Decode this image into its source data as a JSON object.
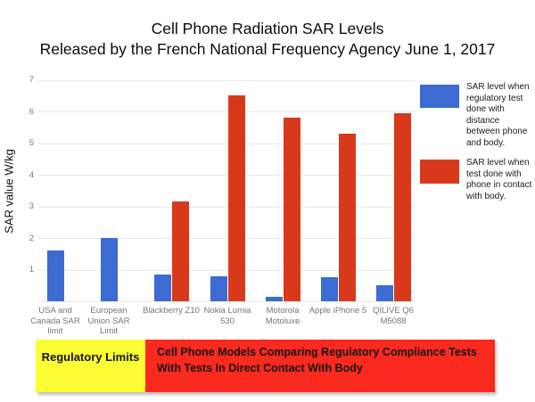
{
  "title": {
    "line1": "Cell Phone Radiation SAR Levels",
    "line2": "Released by the French National Frequency Agency June 1, 2017"
  },
  "chart_data": {
    "type": "bar",
    "title": "Cell Phone Radiation SAR Levels Released by the French National Frequency Agency June 1, 2017",
    "categories": [
      "USA and Canada SAR limit",
      "European Union SAR Limit",
      "Blackberry Z10",
      "Nokia Lumia 530",
      "Motorola Motoluxe",
      "Apple iPhone 5",
      "QILIVE Q6 M5088"
    ],
    "series": [
      {
        "name": "SAR level when regulatory test done with distance between phone and body.",
        "color": "#3c6bd2",
        "values": [
          1.6,
          2.0,
          0.85,
          0.8,
          0.15,
          0.75,
          0.5
        ]
      },
      {
        "name": "SAR level when test done with phone in contact with body.",
        "color": "#d9391b",
        "values": [
          null,
          null,
          3.15,
          6.5,
          5.8,
          5.3,
          5.95
        ]
      }
    ],
    "xlabel": "",
    "ylabel": "SAR value W/kg",
    "ylim": [
      0,
      7
    ],
    "y_ticks": [
      1,
      2,
      3,
      4,
      5,
      6,
      7
    ],
    "grid": true,
    "legend_position": "right"
  },
  "footer": {
    "yellow_color": "#fdfd33",
    "red_color": "#fb2a1e",
    "regulatory_label": "Regulatory Limits",
    "models_label_lines": [
      "Cell Phone Models Comparing Regulatory Compliance Tests",
      "With Tests In Direct Contact With Body"
    ]
  }
}
